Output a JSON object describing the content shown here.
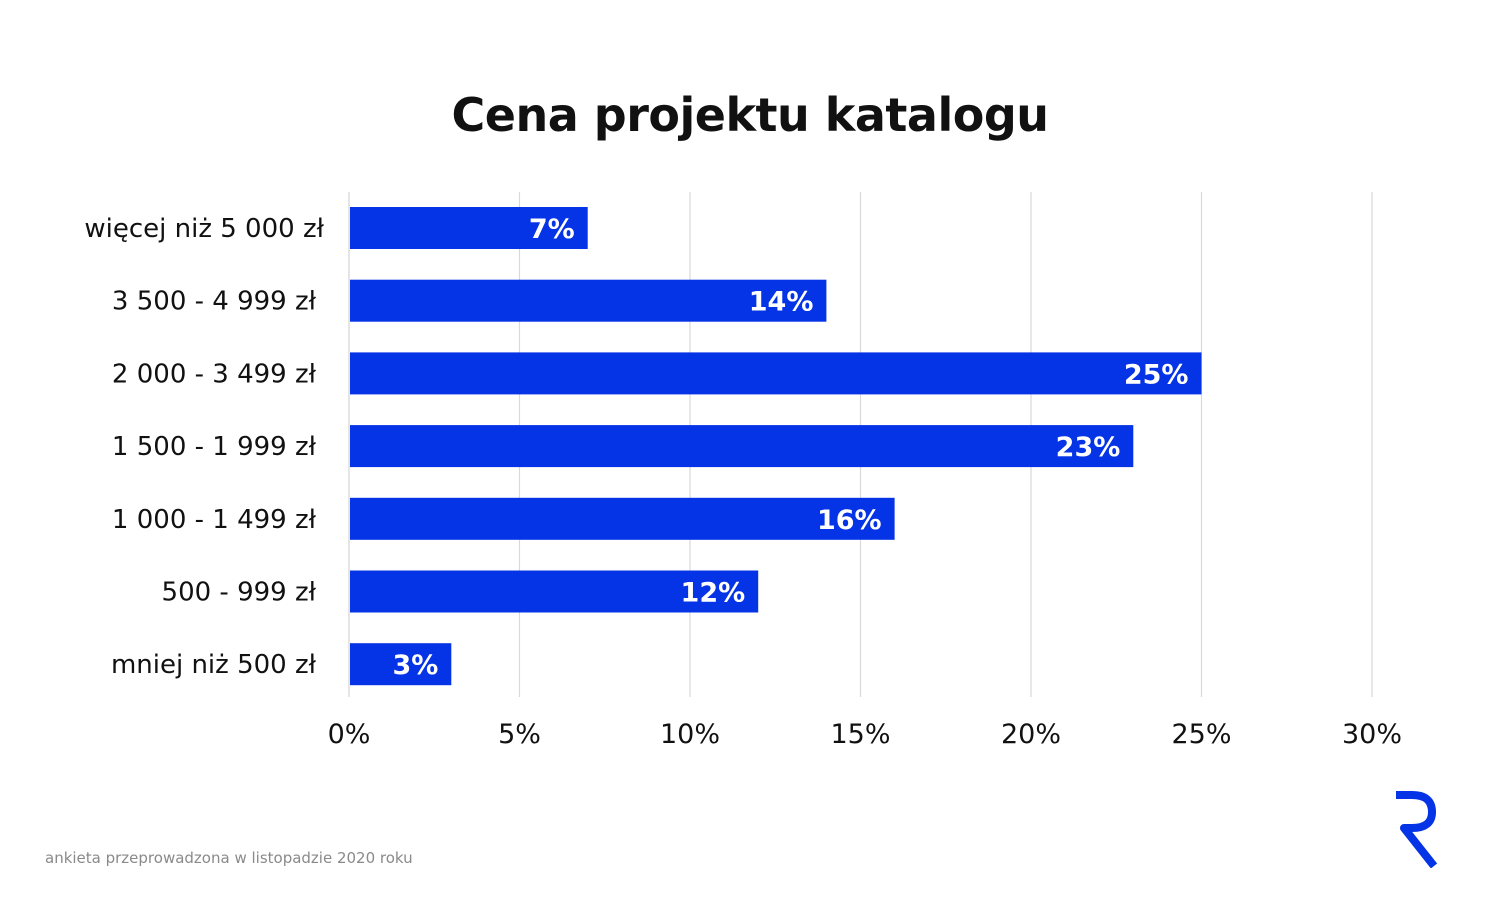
{
  "colors": {
    "bar": "#0533e6",
    "grid": "#d9d9d9",
    "text": "#111111",
    "footnote": "#8a8a8a",
    "logo": "#0533e6"
  },
  "footnote": "ankieta przeprowadzona w listopadzie 2020 roku",
  "logo": {
    "icon": "r-logo-icon"
  },
  "chart_data": {
    "type": "bar",
    "orientation": "horizontal",
    "title": "Cena projektu katalogu",
    "categories": [
      "więcej niż 5 000 zł",
      "3 500 - 4 999 zł",
      "2 000 - 3 499 zł",
      "1 500 - 1 999 zł",
      "1 000 - 1 499 zł",
      "500 - 999 zł",
      "mniej niż 500 zł"
    ],
    "values": [
      7,
      14,
      25,
      23,
      16,
      12,
      3
    ],
    "value_labels": [
      "7%",
      "14%",
      "25%",
      "23%",
      "16%",
      "12%",
      "3%"
    ],
    "xlim": [
      0,
      30
    ],
    "xticks": [
      0,
      5,
      10,
      15,
      20,
      25,
      30
    ],
    "xtick_labels": [
      "0%",
      "5%",
      "10%",
      "15%",
      "20%",
      "25%",
      "30%"
    ],
    "grid": true
  }
}
